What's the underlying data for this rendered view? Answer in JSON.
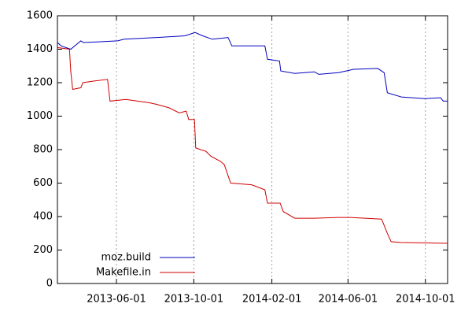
{
  "chart_data": {
    "type": "line",
    "xlim": [
      "2013-02-28",
      "2014-11-05"
    ],
    "xticks": [
      "2013-06-01",
      "2013-10-01",
      "2014-02-01",
      "2014-06-01",
      "2014-10-01"
    ],
    "ylim": [
      0,
      1600
    ],
    "yticks": [
      0,
      200,
      400,
      600,
      800,
      1000,
      1200,
      1400,
      1600
    ],
    "grid": "x",
    "legend": "lower left",
    "series": [
      {
        "name": "moz.build",
        "color": "#0000c0",
        "x": [
          "2013-02-28",
          "2013-03-06",
          "2013-03-21",
          "2013-04-06",
          "2013-04-10",
          "2013-06-03",
          "2013-06-13",
          "2013-08-04",
          "2013-09-17",
          "2013-10-03",
          "2013-10-15",
          "2013-10-30",
          "2013-11-24",
          "2013-11-30",
          "2014-01-21",
          "2014-01-25",
          "2014-02-13",
          "2014-02-15",
          "2014-03-09",
          "2014-04-09",
          "2014-04-16",
          "2014-05-17",
          "2014-06-10",
          "2014-07-18",
          "2014-07-28",
          "2014-08-02",
          "2014-08-24",
          "2014-09-30",
          "2014-10-25",
          "2014-10-29",
          "2014-11-05"
        ],
        "values": [
          1440,
          1420,
          1400,
          1450,
          1440,
          1450,
          1460,
          1470,
          1480,
          1500,
          1480,
          1460,
          1470,
          1420,
          1420,
          1340,
          1330,
          1270,
          1255,
          1265,
          1250,
          1260,
          1280,
          1285,
          1260,
          1140,
          1115,
          1105,
          1110,
          1090,
          1090
        ]
      },
      {
        "name": "Makefile.in",
        "color": "#d00000",
        "x": [
          "2013-02-28",
          "2013-03-19",
          "2013-03-21",
          "2013-03-24",
          "2013-04-06",
          "2013-04-09",
          "2013-04-27",
          "2013-05-18",
          "2013-05-22",
          "2013-06-16",
          "2013-07-23",
          "2013-08-04",
          "2013-08-23",
          "2013-09-08",
          "2013-09-19",
          "2013-09-23",
          "2013-10-02",
          "2013-10-04",
          "2013-10-20",
          "2013-10-28",
          "2013-11-12",
          "2013-11-18",
          "2013-11-28",
          "2013-12-31",
          "2014-01-21",
          "2014-01-25",
          "2014-02-14",
          "2014-02-19",
          "2014-03-09",
          "2014-04-09",
          "2014-05-17",
          "2014-06-04",
          "2014-07-24",
          "2014-08-02",
          "2014-08-08",
          "2014-08-24",
          "2014-11-05"
        ],
        "values": [
          1410,
          1400,
          1270,
          1160,
          1170,
          1200,
          1210,
          1220,
          1090,
          1100,
          1080,
          1070,
          1050,
          1020,
          1030,
          980,
          980,
          810,
          790,
          760,
          730,
          710,
          600,
          590,
          560,
          480,
          480,
          430,
          390,
          390,
          395,
          395,
          385,
          300,
          250,
          245,
          240
        ]
      }
    ]
  }
}
